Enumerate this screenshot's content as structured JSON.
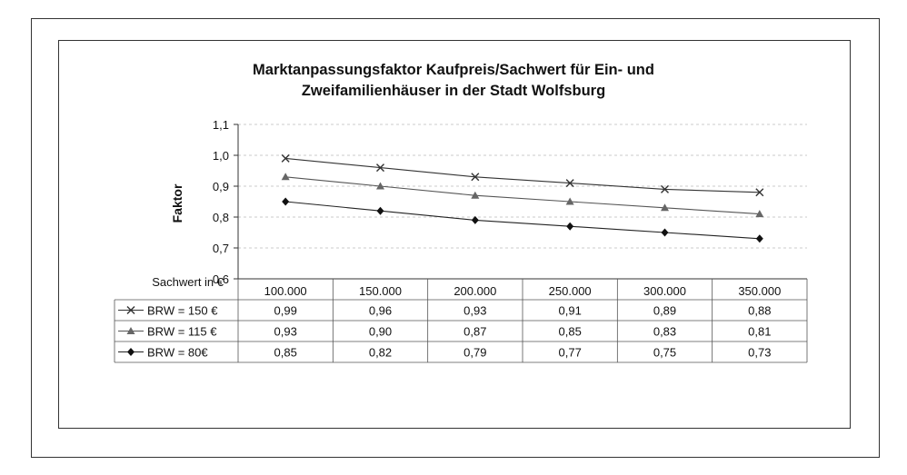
{
  "chart_data": {
    "type": "line",
    "title_lines": [
      "Marktanpassungsfaktor Kaufpreis/Sachwert für Ein- und",
      "Zweifamilienhäuser in der Stadt Wolfsburg"
    ],
    "ylabel": "Faktor",
    "xlabel": "Sachwert in €",
    "ylim": [
      0.6,
      1.1
    ],
    "yticks": [
      "0,6",
      "0,7",
      "0,8",
      "0,9",
      "1,0",
      "1,1"
    ],
    "categories": [
      "100.000",
      "150.000",
      "200.000",
      "250.000",
      "300.000",
      "350.000"
    ],
    "series": [
      {
        "name": "BRW = 150 €",
        "marker": "x",
        "values": [
          0.99,
          0.96,
          0.93,
          0.91,
          0.89,
          0.88
        ],
        "labels": [
          "0,99",
          "0,96",
          "0,93",
          "0,91",
          "0,89",
          "0,88"
        ],
        "color": "#333333",
        "marker_color": "#333333"
      },
      {
        "name": "BRW = 115 €",
        "marker": "triangle",
        "values": [
          0.93,
          0.9,
          0.87,
          0.85,
          0.83,
          0.81
        ],
        "labels": [
          "0,93",
          "0,90",
          "0,87",
          "0,85",
          "0,83",
          "0,81"
        ],
        "color": "#555555",
        "marker_color": "#666666"
      },
      {
        "name": "BRW =  80€",
        "marker": "diamond",
        "values": [
          0.85,
          0.82,
          0.79,
          0.77,
          0.75,
          0.73
        ],
        "labels": [
          "0,85",
          "0,82",
          "0,79",
          "0,77",
          "0,75",
          "0,73"
        ],
        "color": "#222222",
        "marker_color": "#111111"
      }
    ],
    "grid": true,
    "legend": "data-table"
  }
}
